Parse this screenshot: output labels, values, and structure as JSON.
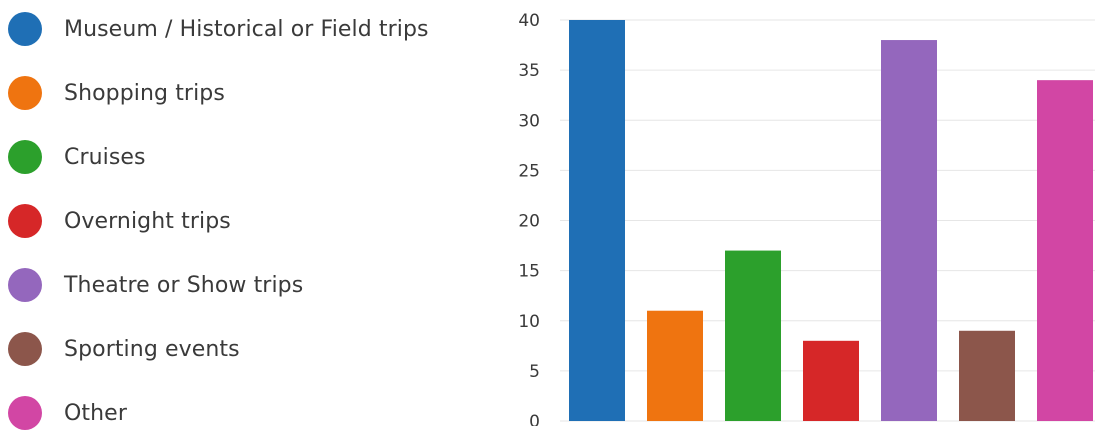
{
  "chart_data": {
    "type": "bar",
    "categories": [
      "Museum / Historical or Field trips",
      "Shopping trips",
      "Cruises",
      "Overnight trips",
      "Theatre or Show trips",
      "Sporting events",
      "Other"
    ],
    "values": [
      40,
      11,
      17,
      8,
      38,
      9,
      34
    ],
    "colors": [
      "#1f6fb5",
      "#ef7410",
      "#2ca02c",
      "#d62728",
      "#9467bd",
      "#8c564b",
      "#d246a4"
    ],
    "ylim": [
      0,
      40
    ],
    "yticks": [
      0,
      5,
      10,
      15,
      20,
      25,
      30,
      35,
      40
    ],
    "grid": true,
    "legend_position": "left"
  }
}
